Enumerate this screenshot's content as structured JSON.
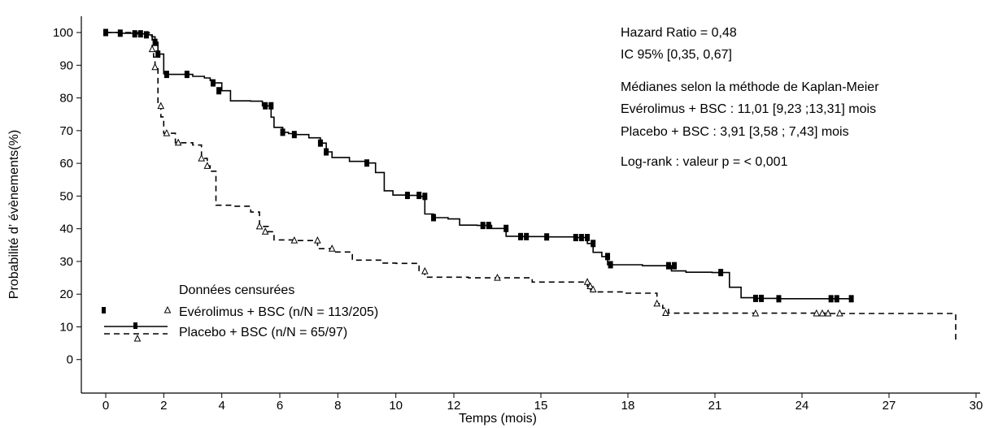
{
  "chart_data": {
    "type": "line",
    "chart_style": "kaplan-meier step curves",
    "xlabel": "Temps (mois)",
    "ylabel": "Probabilité d’ évènements(%)",
    "xlim": [
      0,
      30
    ],
    "ylim": [
      -10,
      102
    ],
    "x_ticks": [
      {
        "v": 0,
        "label": "0"
      },
      {
        "v": 2,
        "label": "2"
      },
      {
        "v": 4,
        "label": "4"
      },
      {
        "v": 6,
        "label": "6"
      },
      {
        "v": 8,
        "label": "8"
      },
      {
        "v": 10,
        "label": "10"
      },
      {
        "v": 12,
        "label": "12"
      },
      {
        "v": 15,
        "label": "15"
      },
      {
        "v": 18,
        "label": "18"
      },
      {
        "v": 21,
        "label": "21"
      },
      {
        "v": 24,
        "label": "24"
      },
      {
        "v": 27,
        "label": "27"
      },
      {
        "v": 30,
        "label": "30"
      }
    ],
    "y_ticks": [
      {
        "v": 100,
        "label": "100"
      },
      {
        "v": 90,
        "label": "90"
      },
      {
        "v": 80,
        "label": "80"
      },
      {
        "v": 70,
        "label": "70"
      },
      {
        "v": 60,
        "label": "60"
      },
      {
        "v": 50,
        "label": "50"
      },
      {
        "v": 40,
        "label": "40"
      },
      {
        "v": 30,
        "label": "30"
      },
      {
        "v": 20,
        "label": "20"
      },
      {
        "v": 10,
        "label": "10"
      },
      {
        "v": 0,
        "label": "0"
      }
    ],
    "grid": false,
    "series": [
      {
        "name": "Evérolimus + BSC",
        "line_style": "solid",
        "censor_marker": "square",
        "color": "#000000",
        "x": [
          0,
          0.5,
          1.0,
          1.4,
          1.6,
          1.7,
          1.8,
          2.0,
          2.1,
          3.0,
          3.4,
          3.6,
          3.7,
          4.0,
          4.3,
          5.0,
          5.4,
          5.7,
          5.8,
          6.1,
          6.3,
          6.5,
          7.0,
          7.4,
          7.6,
          7.8,
          8.4,
          9.0,
          9.3,
          9.6,
          9.9,
          10.4,
          10.8,
          11.0,
          11.3,
          11.8,
          12.2,
          12.8,
          13.3,
          13.8,
          14.3,
          15.2,
          16.2,
          16.6,
          16.8,
          17.1,
          17.3,
          18.5,
          19.5,
          20.0,
          20.9,
          21.5,
          21.9,
          22.4,
          23.2,
          24.3,
          25.0,
          25.7
        ],
        "y": [
          100,
          99.8,
          99.6,
          99.3,
          98.7,
          97.0,
          93.4,
          87.4,
          87.2,
          86.6,
          86.1,
          85.3,
          84.6,
          82.2,
          79.1,
          79.0,
          77.6,
          74.1,
          71.0,
          69.5,
          69.1,
          68.8,
          67.8,
          66.2,
          63.5,
          61.8,
          60.6,
          60.1,
          57.2,
          51.6,
          50.3,
          50.2,
          49.9,
          44.5,
          43.4,
          43.0,
          41.1,
          41.0,
          40.1,
          37.7,
          37.6,
          37.5,
          37.3,
          35.5,
          32.8,
          31.5,
          29.0,
          28.7,
          27.1,
          26.7,
          26.6,
          22.1,
          18.9,
          18.7,
          18.6,
          18.6,
          18.6,
          18.6
        ],
        "censors_x": [
          0,
          0.5,
          1.0,
          1.2,
          1.4,
          1.7,
          1.8,
          2.1,
          2.8,
          3.7,
          3.9,
          5.5,
          5.7,
          6.1,
          6.5,
          7.4,
          7.6,
          9.0,
          10.4,
          10.8,
          11.0,
          11.3,
          13.0,
          13.2,
          13.8,
          14.3,
          14.5,
          15.2,
          16.2,
          16.4,
          16.6,
          16.8,
          17.3,
          17.4,
          19.4,
          19.6,
          21.2,
          22.4,
          22.6,
          23.2,
          25.0,
          25.2,
          25.7
        ],
        "censors_y": [
          100,
          99.8,
          99.6,
          99.6,
          99.3,
          97.0,
          93.4,
          87.2,
          87.2,
          84.6,
          82.2,
          77.6,
          77.6,
          69.5,
          68.8,
          66.2,
          63.5,
          60.1,
          50.2,
          50.2,
          49.9,
          43.4,
          41.0,
          41.0,
          40.1,
          37.6,
          37.6,
          37.5,
          37.3,
          37.3,
          37.3,
          35.5,
          31.5,
          29.0,
          28.7,
          28.7,
          26.6,
          18.7,
          18.7,
          18.6,
          18.6,
          18.6,
          18.6
        ]
      },
      {
        "name": "Placebo + BSC",
        "line_style": "dashed",
        "censor_marker": "triangle",
        "color": "#000000",
        "x": [
          0,
          1.5,
          1.6,
          1.65,
          1.7,
          1.8,
          1.9,
          2.0,
          2.4,
          3.0,
          3.3,
          3.5,
          3.6,
          3.8,
          4.4,
          5.0,
          5.3,
          5.6,
          5.8,
          6.6,
          7.3,
          7.8,
          8.5,
          9.5,
          10.0,
          10.8,
          11.0,
          12.5,
          14.7,
          16.6,
          16.7,
          16.8,
          17.8,
          19.0,
          19.2,
          19.4,
          24.8,
          25.5,
          29.3,
          29.3
        ],
        "y": [
          100,
          98.9,
          94.9,
          92.5,
          89.4,
          77.5,
          74.2,
          69.2,
          66.3,
          65.6,
          61.5,
          59.2,
          57.6,
          47.2,
          46.9,
          45.1,
          40.7,
          39.1,
          36.6,
          36.4,
          33.9,
          32.9,
          30.4,
          29.5,
          29.4,
          27.0,
          25.2,
          25.0,
          23.7,
          22.4,
          21.4,
          20.7,
          20.3,
          17.1,
          15.7,
          14.2,
          14.1,
          14.1,
          14.1,
          6.0
        ],
        "censors_x": [
          1.6,
          1.7,
          1.9,
          2.1,
          2.5,
          3.3,
          3.5,
          5.3,
          5.5,
          6.5,
          7.3,
          7.8,
          11.0,
          13.5,
          16.6,
          16.7,
          16.8,
          19.0,
          19.3,
          22.4,
          24.5,
          24.7,
          24.9,
          25.3
        ],
        "censors_y": [
          94.9,
          89.4,
          77.5,
          69.2,
          66.3,
          61.5,
          59.2,
          40.7,
          39.1,
          36.4,
          36.4,
          33.9,
          27.0,
          25.0,
          23.7,
          22.4,
          21.4,
          17.1,
          14.2,
          14.1,
          14.1,
          14.1,
          14.1,
          14.1
        ]
      }
    ],
    "annotations": {
      "hazard_ratio": "Hazard Ratio = 0,48",
      "ci": "IC 95% [0,35, 0,67]",
      "median_title": "Médianes selon la méthode de Kaplan-Meier",
      "median_everolimus": "Evérolimus + BSC : 11,01 [9,23 ;13,31] mois",
      "median_placebo": "Placebo + BSC : 3,91 [3,58 ; 7,43] mois",
      "logrank": "Log-rank : valeur p =  < 0,001"
    },
    "legend": {
      "placement": "bottom-left",
      "title": "Données censurées",
      "entry_everolimus": "Evérolimus + BSC (n/N = 113/205)",
      "entry_placebo": "Placebo + BSC (n/N = 65/97)"
    }
  }
}
